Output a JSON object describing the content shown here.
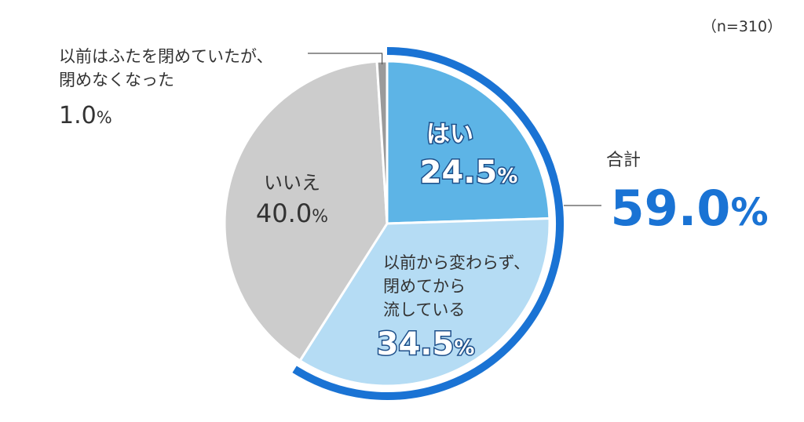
{
  "chart_data": {
    "type": "pie",
    "note": "（n=310）",
    "slices": [
      {
        "label": "はい",
        "value": 24.5,
        "display": "24.5",
        "pct_sign": "%",
        "color": "#5db4e6"
      },
      {
        "label_lines": [
          "以前から変わらず、",
          "閉めてから",
          "流している"
        ],
        "value": 34.5,
        "display": "34.5",
        "pct_sign": "%",
        "color": "#b5dcf4"
      },
      {
        "label": "いいえ",
        "value": 40.0,
        "display": "40.0",
        "pct_sign": "%",
        "color": "#cccccc"
      },
      {
        "label_lines": [
          "以前はふたを閉めていたが、",
          "閉めなくなった"
        ],
        "value": 1.0,
        "display": "1.0",
        "pct_sign": "%",
        "color": "#9a9a9a"
      }
    ],
    "total": {
      "label": "合計",
      "value": 59.0,
      "display": "59.0",
      "pct_sign": "%",
      "color": "#1a73d4"
    }
  }
}
